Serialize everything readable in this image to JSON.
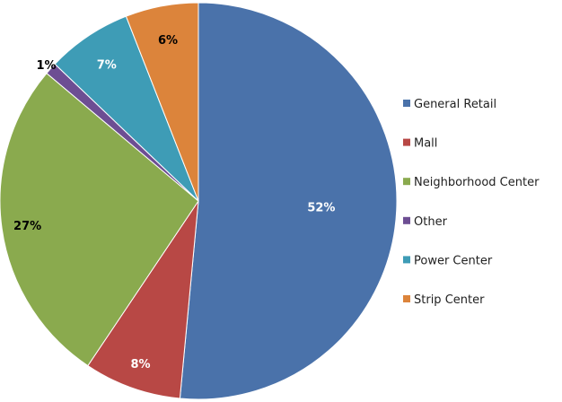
{
  "chart_data": {
    "type": "pie",
    "title": "",
    "categories": [
      "General Retail",
      "Mall",
      "Neighborhood Center",
      "Other",
      "Power Center",
      "Strip Center"
    ],
    "values": [
      52,
      8,
      27,
      1,
      7,
      6
    ],
    "labels": [
      "52%",
      "8%",
      "27%",
      "1%",
      "7%",
      "6%"
    ],
    "colors": [
      "#4a72aa",
      "#b84845",
      "#8aaa4e",
      "#6d4e93",
      "#3e9cb6",
      "#dc843b"
    ],
    "legend_position": "right",
    "start_angle_deg": 0,
    "direction": "clockwise"
  }
}
